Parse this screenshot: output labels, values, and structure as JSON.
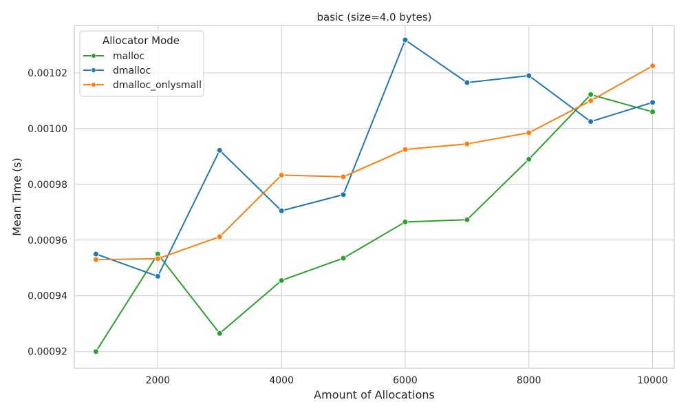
{
  "chart_data": {
    "type": "line",
    "title": "basic (size=4.0 bytes)",
    "xlabel": "Amount of Allocations",
    "ylabel": "Mean Time (s)",
    "xlim": [
      650,
      10350
    ],
    "ylim": [
      0.000914,
      0.001037
    ],
    "xticks": [
      2000,
      4000,
      6000,
      8000,
      10000
    ],
    "xtick_labels": [
      "2000",
      "4000",
      "6000",
      "8000",
      "10000"
    ],
    "yticks": [
      0.00092,
      0.00094,
      0.00096,
      0.00098,
      0.001,
      0.00102
    ],
    "ytick_labels": [
      "0.00092",
      "0.00094",
      "0.00096",
      "0.00098",
      "0.00100",
      "0.00102"
    ],
    "grid": true,
    "legend": {
      "title": "Allocator Mode",
      "position": "top-left"
    },
    "x": [
      1000,
      2000,
      3000,
      4000,
      5000,
      6000,
      7000,
      8000,
      9000,
      10000
    ],
    "series": [
      {
        "name": "malloc",
        "color": "#2ca02c",
        "values": [
          0.00092,
          0.000955,
          0.0009265,
          0.0009455,
          0.0009535,
          0.0009665,
          0.0009673,
          0.000989,
          0.0010122,
          0.001006
        ]
      },
      {
        "name": "dmalloc",
        "color": "#1f77b4",
        "values": [
          0.000955,
          0.000947,
          0.0009922,
          0.0009705,
          0.0009763,
          0.0010318,
          0.0010165,
          0.001019,
          0.0010025,
          0.0010094
        ]
      },
      {
        "name": "dmalloc_onlysmall",
        "color": "#ff7f0e",
        "values": [
          0.000953,
          0.0009533,
          0.0009612,
          0.0009833,
          0.0009827,
          0.0009925,
          0.0009945,
          0.0009985,
          0.00101,
          0.0010225
        ]
      }
    ]
  }
}
